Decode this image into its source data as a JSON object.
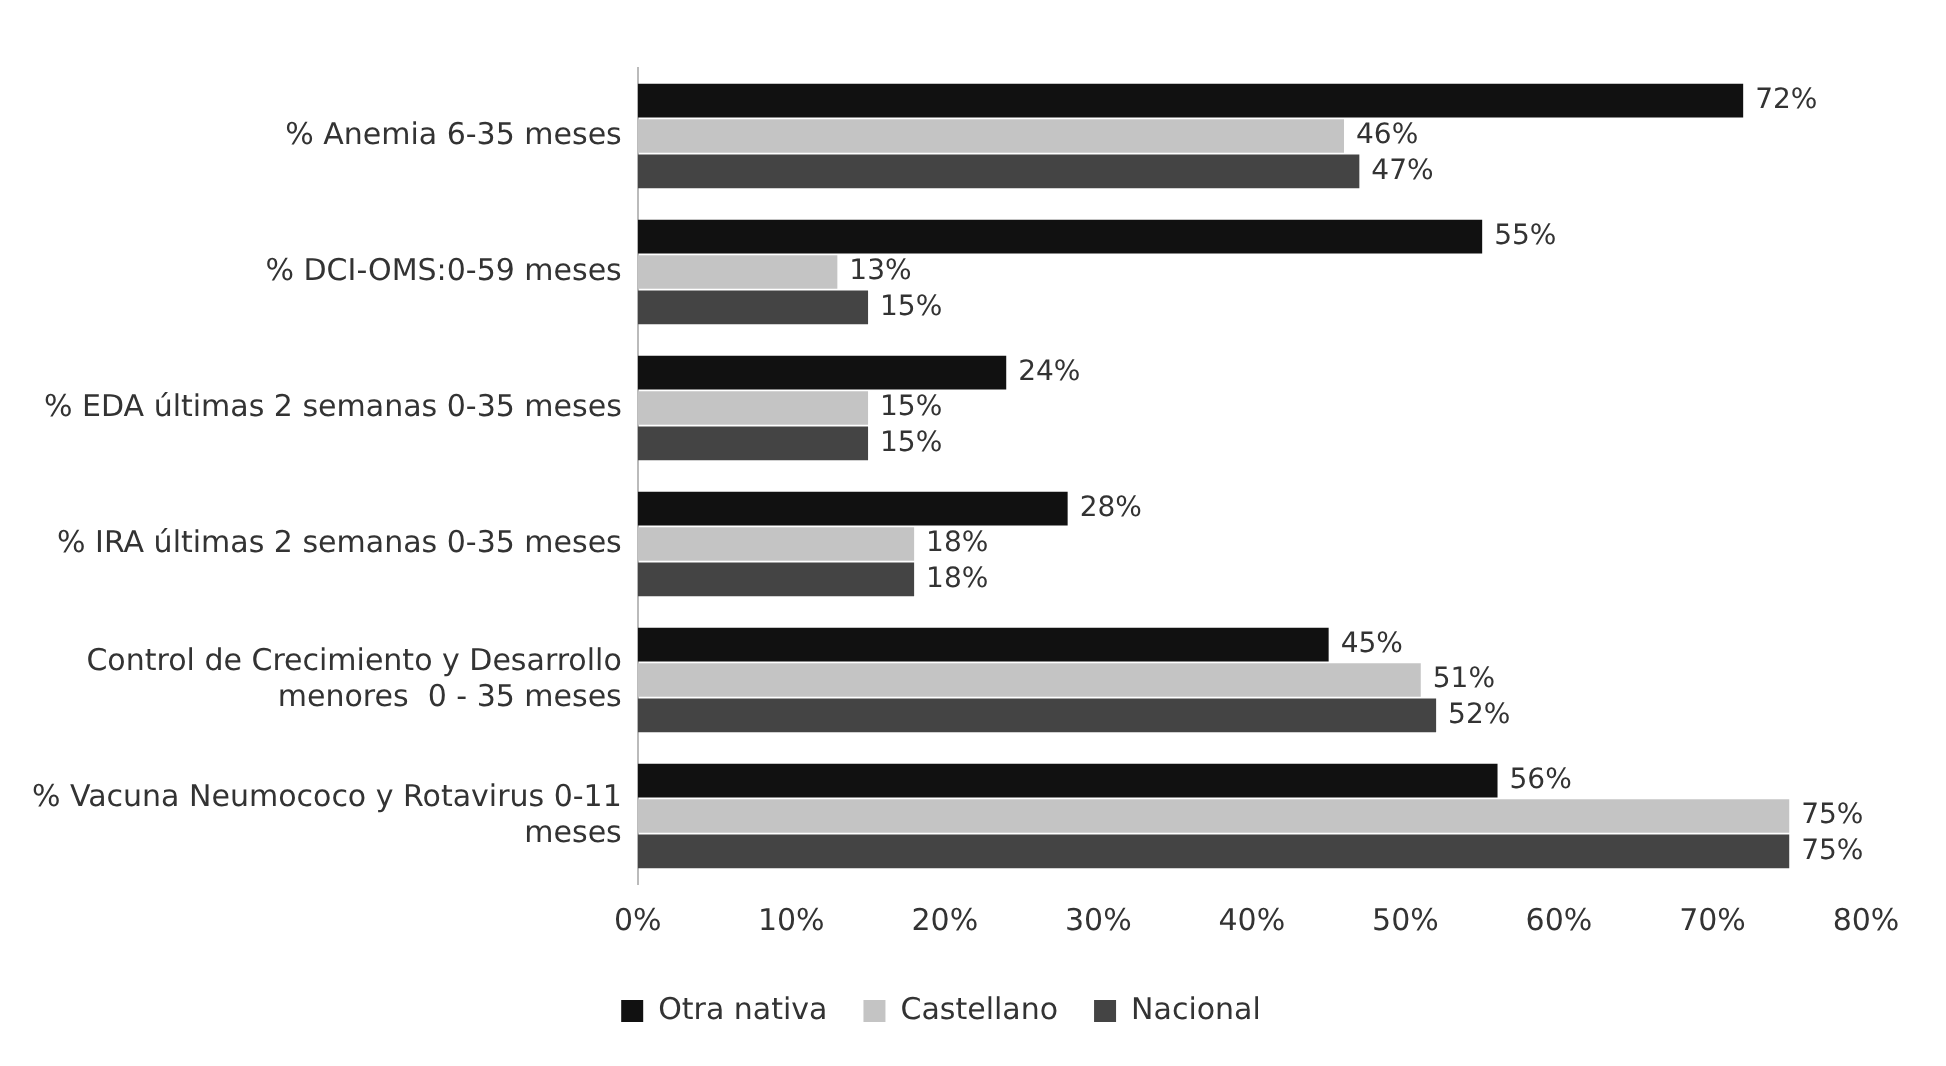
{
  "chart_data": {
    "type": "bar",
    "orientation": "horizontal",
    "categories": [
      "% Anemia 6-35 meses",
      "% DCI-OMS:0-59 meses",
      "% EDA últimas 2 semanas 0-35 meses",
      "% IRA últimas 2 semanas 0-35 meses",
      "Control de Crecimiento y Desarrollo\nmenores  0 - 35 meses",
      "% Vacuna Neumococo y Rotavirus 0-11\nmeses"
    ],
    "series": [
      {
        "name": "Otra nativa",
        "color": "#111111",
        "values": [
          72,
          55,
          24,
          28,
          45,
          56
        ],
        "value_labels": [
          "72%",
          "55%",
          "24%",
          "28%",
          "45%",
          "56%"
        ]
      },
      {
        "name": "Castellano",
        "color": "#c4c4c4",
        "values": [
          46,
          13,
          15,
          18,
          51,
          75
        ],
        "value_labels": [
          "46%",
          "13%",
          "15%",
          "18%",
          "51%",
          "75%"
        ]
      },
      {
        "name": "Nacional",
        "color": "#444444",
        "values": [
          47,
          15,
          15,
          18,
          52,
          75
        ],
        "value_labels": [
          "47%",
          "15%",
          "15%",
          "18%",
          "52%",
          "75%"
        ]
      }
    ],
    "xlim": [
      0,
      80
    ],
    "xticks": [
      {
        "value": 0,
        "label": "0%"
      },
      {
        "value": 10,
        "label": "10%"
      },
      {
        "value": 20,
        "label": "20%"
      },
      {
        "value": 30,
        "label": "30%"
      },
      {
        "value": 40,
        "label": "40%"
      },
      {
        "value": 50,
        "label": "50%"
      },
      {
        "value": 60,
        "label": "60%"
      },
      {
        "value": 70,
        "label": "70%"
      },
      {
        "value": 80,
        "label": "80%"
      }
    ],
    "grid": false,
    "legend": "bottom"
  }
}
